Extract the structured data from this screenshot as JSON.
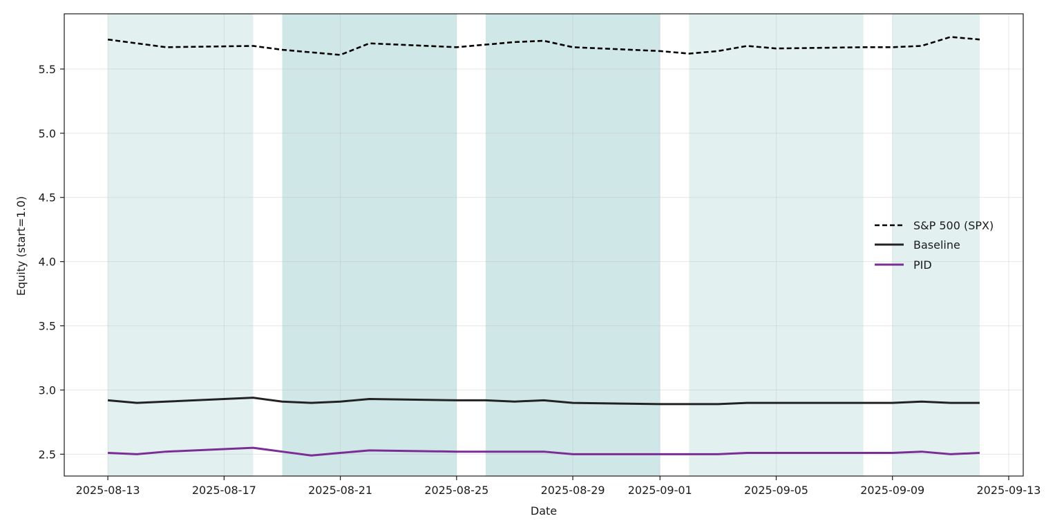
{
  "chart_data": {
    "type": "line",
    "title": "",
    "xlabel": "Date",
    "ylabel": "Equity (start=1.0)",
    "x_tick_labels": [
      "2025-08-13",
      "2025-08-17",
      "2025-08-21",
      "2025-08-25",
      "2025-08-29",
      "2025-09-01",
      "2025-09-05",
      "2025-09-09",
      "2025-09-13"
    ],
    "y_tick_labels": [
      "2.5",
      "3.0",
      "3.5",
      "4.0",
      "4.5",
      "5.0",
      "5.5"
    ],
    "y_ticks": [
      2.5,
      3.0,
      3.5,
      4.0,
      4.5,
      5.0,
      5.5
    ],
    "xlim": [
      "2025-08-11-12h",
      "2025-09-13-12h"
    ],
    "xlim_dates": [
      "2025-08-11",
      "2025-09-13"
    ],
    "ylim": [
      2.33,
      5.93
    ],
    "grid": true,
    "legend_position": "center-right",
    "shaded_regions": [
      {
        "start": "2025-08-13",
        "end": "2025-08-18",
        "color": "#e2f1f0"
      },
      {
        "start": "2025-08-19",
        "end": "2025-08-25",
        "color": "#d0e7e7"
      },
      {
        "start": "2025-08-26",
        "end": "2025-09-01",
        "color": "#d0e7e7"
      },
      {
        "start": "2025-09-02",
        "end": "2025-09-08",
        "color": "#e2f1f0"
      },
      {
        "start": "2025-09-09",
        "end": "2025-09-12",
        "color": "#e2f1f0"
      }
    ],
    "series": [
      {
        "name": "S&P 500 (SPX)",
        "color": "#000000",
        "dashed": true,
        "points": [
          [
            "2025-08-13",
            5.73
          ],
          [
            "2025-08-14",
            5.7
          ],
          [
            "2025-08-15",
            5.67
          ],
          [
            "2025-08-18",
            5.68
          ],
          [
            "2025-08-19",
            5.65
          ],
          [
            "2025-08-20",
            5.63
          ],
          [
            "2025-08-21",
            5.61
          ],
          [
            "2025-08-22",
            5.7
          ],
          [
            "2025-08-25",
            5.67
          ],
          [
            "2025-08-26",
            5.69
          ],
          [
            "2025-08-27",
            5.71
          ],
          [
            "2025-08-28",
            5.72
          ],
          [
            "2025-08-29",
            5.67
          ],
          [
            "2025-09-01",
            5.64
          ],
          [
            "2025-09-02",
            5.62
          ],
          [
            "2025-09-03",
            5.64
          ],
          [
            "2025-09-04",
            5.68
          ],
          [
            "2025-09-05",
            5.66
          ],
          [
            "2025-09-08",
            5.67
          ],
          [
            "2025-09-09",
            5.67
          ],
          [
            "2025-09-10",
            5.68
          ],
          [
            "2025-09-11",
            5.75
          ],
          [
            "2025-09-12",
            5.73
          ]
        ]
      },
      {
        "name": "Baseline",
        "color": "#222222",
        "dashed": false,
        "points": [
          [
            "2025-08-13",
            2.92
          ],
          [
            "2025-08-14",
            2.9
          ],
          [
            "2025-08-15",
            2.91
          ],
          [
            "2025-08-18",
            2.94
          ],
          [
            "2025-08-19",
            2.91
          ],
          [
            "2025-08-20",
            2.9
          ],
          [
            "2025-08-21",
            2.91
          ],
          [
            "2025-08-22",
            2.93
          ],
          [
            "2025-08-25",
            2.92
          ],
          [
            "2025-08-26",
            2.92
          ],
          [
            "2025-08-27",
            2.91
          ],
          [
            "2025-08-28",
            2.92
          ],
          [
            "2025-08-29",
            2.9
          ],
          [
            "2025-09-01",
            2.89
          ],
          [
            "2025-09-02",
            2.89
          ],
          [
            "2025-09-03",
            2.89
          ],
          [
            "2025-09-04",
            2.9
          ],
          [
            "2025-09-05",
            2.9
          ],
          [
            "2025-09-08",
            2.9
          ],
          [
            "2025-09-09",
            2.9
          ],
          [
            "2025-09-10",
            2.91
          ],
          [
            "2025-09-11",
            2.9
          ],
          [
            "2025-09-12",
            2.9
          ]
        ]
      },
      {
        "name": "PID",
        "color": "#7b2d96",
        "dashed": false,
        "points": [
          [
            "2025-08-13",
            2.51
          ],
          [
            "2025-08-14",
            2.5
          ],
          [
            "2025-08-15",
            2.52
          ],
          [
            "2025-08-18",
            2.55
          ],
          [
            "2025-08-19",
            2.52
          ],
          [
            "2025-08-20",
            2.49
          ],
          [
            "2025-08-21",
            2.51
          ],
          [
            "2025-08-22",
            2.53
          ],
          [
            "2025-08-25",
            2.52
          ],
          [
            "2025-08-26",
            2.52
          ],
          [
            "2025-08-27",
            2.52
          ],
          [
            "2025-08-28",
            2.52
          ],
          [
            "2025-08-29",
            2.5
          ],
          [
            "2025-09-01",
            2.5
          ],
          [
            "2025-09-02",
            2.5
          ],
          [
            "2025-09-03",
            2.5
          ],
          [
            "2025-09-04",
            2.51
          ],
          [
            "2025-09-05",
            2.51
          ],
          [
            "2025-09-08",
            2.51
          ],
          [
            "2025-09-09",
            2.51
          ],
          [
            "2025-09-10",
            2.52
          ],
          [
            "2025-09-11",
            2.5
          ],
          [
            "2025-09-12",
            2.51
          ]
        ]
      }
    ]
  }
}
